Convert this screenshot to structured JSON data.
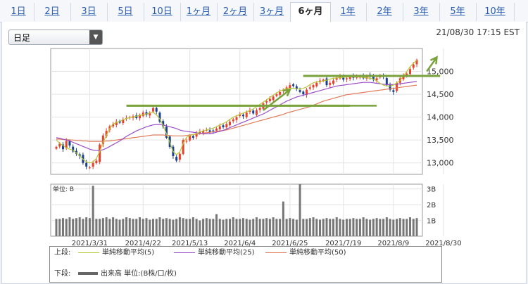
{
  "tabs": [
    {
      "label": "1日",
      "active": false
    },
    {
      "label": "2日",
      "active": false
    },
    {
      "label": "3日",
      "active": false
    },
    {
      "label": "5日",
      "active": false
    },
    {
      "label": "10日",
      "active": false
    },
    {
      "label": "1ヶ月",
      "active": false
    },
    {
      "label": "2ヶ月",
      "active": false
    },
    {
      "label": "3ヶ月",
      "active": false
    },
    {
      "label": "6ヶ月",
      "active": true
    },
    {
      "label": "1年",
      "active": false
    },
    {
      "label": "2年",
      "active": false
    },
    {
      "label": "3年",
      "active": false
    },
    {
      "label": "5年",
      "active": false
    },
    {
      "label": "10年",
      "active": false
    }
  ],
  "interval_select": {
    "value": "日足"
  },
  "datetime": "21/08/30 17:15 EST",
  "legend": {
    "upper_label": "上段:",
    "lower_label": "下段:",
    "ma5": "単純移動平均(5)",
    "ma25": "単純移動平均(25)",
    "ma50": "単純移動平均(50)",
    "volume": "出来高 単位:(B株/口/枚)"
  },
  "colors": {
    "up": "#e8412c",
    "down": "#1b3f8f",
    "ma5": "#b8c93a",
    "ma25": "#9b4fc9",
    "ma50": "#e07a58",
    "annotation": "#7aa23c",
    "volume": "#777777"
  },
  "chart_data": {
    "type": "candlestick",
    "price_axis": {
      "ticks": [
        "15,000",
        "14,500",
        "14,000",
        "13,500",
        "13,000"
      ],
      "ylim": [
        12750,
        15500
      ]
    },
    "volume_axis": {
      "unit_label": "単位: B",
      "ticks": [
        "3B",
        "2B",
        "1B"
      ],
      "ylim": [
        0,
        3.3
      ]
    },
    "x_tick_labels": [
      "2021/3/31",
      "2021/4/22",
      "2021/5/13",
      "2021/6/4",
      "2021/6/25",
      "2021/7/19",
      "2021/8/9",
      "2021/8/30"
    ],
    "x_tick_indices": [
      10,
      26,
      40,
      55,
      70,
      86,
      101,
      116
    ],
    "closes": [
      13350,
      13420,
      13300,
      13480,
      13380,
      13250,
      13200,
      13150,
      13000,
      12920,
      12900,
      13000,
      13050,
      13400,
      13600,
      13700,
      13800,
      13850,
      13900,
      13880,
      13950,
      13980,
      14000,
      14020,
      13980,
      14050,
      14100,
      14050,
      14100,
      14200,
      14120,
      13900,
      13800,
      13550,
      13350,
      13150,
      13050,
      13200,
      13500,
      13480,
      13600,
      13550,
      13650,
      13680,
      13700,
      13720,
      13680,
      13700,
      13750,
      13800,
      13780,
      13850,
      13900,
      13950,
      14000,
      14050,
      14020,
      14100,
      14150,
      14080,
      14150,
      14200,
      14300,
      14350,
      14400,
      14450,
      14500,
      14550,
      14600,
      14650,
      14700,
      14680,
      14620,
      14550,
      14500,
      14600,
      14650,
      14700,
      14750,
      14800,
      14820,
      14700,
      14750,
      14800,
      14850,
      14900,
      14820,
      14850,
      14870,
      14860,
      14900,
      14880,
      14850,
      14900,
      14880,
      14820,
      14850,
      14900,
      14880,
      14700,
      14600,
      14550,
      14750,
      14850,
      14900,
      14950,
      15050,
      15150,
      15250
    ],
    "volumes": [
      1.1,
      1.1,
      1.15,
      1.1,
      1.2,
      1.1,
      1.15,
      1.2,
      1.1,
      1.2,
      1.15,
      3.2,
      1.1,
      1.1,
      1.15,
      1.2,
      1.1,
      1.2,
      1.1,
      1.05,
      1.1,
      1.2,
      1.15,
      1.1,
      1.1,
      1.2,
      1.1,
      1.15,
      1.05,
      1.1,
      1.1,
      1.2,
      1.1,
      1.15,
      1.1,
      1.05,
      1.1,
      1.2,
      1.15,
      1.1,
      1.1,
      1.2,
      1.1,
      1.0,
      1.1,
      1.15,
      1.1,
      1.1,
      1.4,
      1.1,
      1.05,
      1.1,
      1.1,
      1.2,
      1.1,
      1.1,
      1.15,
      1.1,
      1.05,
      1.1,
      1.2,
      1.1,
      1.1,
      1.15,
      1.1,
      1.2,
      1.1,
      1.1,
      2.2,
      1.1,
      1.15,
      1.1,
      1.05,
      3.3,
      1.1,
      1.1,
      1.15,
      1.2,
      1.1,
      1.05,
      1.1,
      1.15,
      1.1,
      1.1,
      1.2,
      1.1,
      1.05,
      1.1,
      1.1,
      1.15,
      1.1,
      1.1,
      1.2,
      1.1,
      1.05,
      1.1,
      1.15,
      1.1,
      1.1,
      1.2,
      1.1,
      1.05,
      1.1,
      1.15,
      1.1,
      1.1,
      1.2,
      1.1,
      1.15
    ],
    "ma5": [
      13500,
      13430,
      13380,
      13330,
      13300,
      13280,
      13220,
      13160,
      13080,
      13020,
      13000,
      13020,
      13100,
      13250,
      13450,
      13600,
      13750,
      13850,
      13880,
      13910,
      13940,
      13970,
      13990,
      14000,
      14020,
      14040,
      14050,
      14070,
      14090,
      14110,
      14050,
      13960,
      13820,
      13640,
      13450,
      13250,
      13180,
      13240,
      13420,
      13560,
      13600,
      13620,
      13640,
      13680,
      13700,
      13720,
      13740,
      13760,
      13790,
      13830,
      13860,
      13900,
      13950,
      14000,
      14030,
      14060,
      14090,
      14120,
      14140,
      14180,
      14230,
      14280,
      14330,
      14380,
      14430,
      14480,
      14530,
      14570,
      14600,
      14620,
      14630,
      14630,
      14620,
      14610,
      14630,
      14660,
      14710,
      14750,
      14770,
      14780,
      14790,
      14810,
      14830,
      14850,
      14860,
      14860,
      14870,
      14880,
      14880,
      14880,
      14880,
      14880,
      14870,
      14860,
      14850,
      14830,
      14790,
      14740,
      14700,
      14680,
      14680,
      14700,
      14750,
      14800,
      14900,
      15000,
      15100,
      15180,
      15240
    ],
    "ma25": [
      13550,
      13540,
      13520,
      13500,
      13480,
      13450,
      13420,
      13390,
      13360,
      13330,
      13300,
      13280,
      13270,
      13270,
      13290,
      13320,
      13360,
      13400,
      13440,
      13480,
      13530,
      13580,
      13620,
      13660,
      13700,
      13730,
      13760,
      13790,
      13810,
      13830,
      13840,
      13840,
      13830,
      13810,
      13790,
      13770,
      13750,
      13720,
      13700,
      13690,
      13680,
      13670,
      13660,
      13650,
      13640,
      13640,
      13640,
      13650,
      13670,
      13690,
      13710,
      13740,
      13770,
      13800,
      13830,
      13860,
      13890,
      13920,
      13950,
      13980,
      14010,
      14040,
      14070,
      14110,
      14150,
      14190,
      14230,
      14270,
      14310,
      14350,
      14380,
      14410,
      14440,
      14460,
      14480,
      14500,
      14520,
      14540,
      14560,
      14580,
      14600,
      14620,
      14640,
      14660,
      14680,
      14690,
      14700,
      14710,
      14720,
      14730,
      14740,
      14750,
      14760,
      14760,
      14760,
      14750,
      14740,
      14730,
      14720,
      14710,
      14710,
      14710,
      14720,
      14730,
      14740,
      14750,
      14760,
      14770,
      14780
    ],
    "ma50": [
      13520,
      13520,
      13510,
      13510,
      13500,
      13500,
      13490,
      13490,
      13480,
      13480,
      13470,
      13470,
      13470,
      13470,
      13470,
      13480,
      13480,
      13490,
      13500,
      13510,
      13520,
      13530,
      13540,
      13550,
      13560,
      13570,
      13580,
      13590,
      13600,
      13610,
      13610,
      13610,
      13610,
      13600,
      13600,
      13590,
      13590,
      13590,
      13590,
      13600,
      13610,
      13620,
      13630,
      13640,
      13650,
      13660,
      13670,
      13680,
      13690,
      13700,
      13710,
      13720,
      13740,
      13760,
      13780,
      13800,
      13820,
      13840,
      13860,
      13880,
      13900,
      13920,
      13940,
      13960,
      13980,
      14000,
      14020,
      14040,
      14060,
      14090,
      14110,
      14130,
      14150,
      14170,
      14190,
      14210,
      14230,
      14260,
      14290,
      14320,
      14350,
      14370,
      14390,
      14410,
      14430,
      14450,
      14470,
      14490,
      14500,
      14510,
      14520,
      14530,
      14540,
      14550,
      14560,
      14570,
      14580,
      14590,
      14600,
      14610,
      14620,
      14630,
      14640,
      14650,
      14660,
      14670,
      14680,
      14690,
      14700
    ]
  }
}
